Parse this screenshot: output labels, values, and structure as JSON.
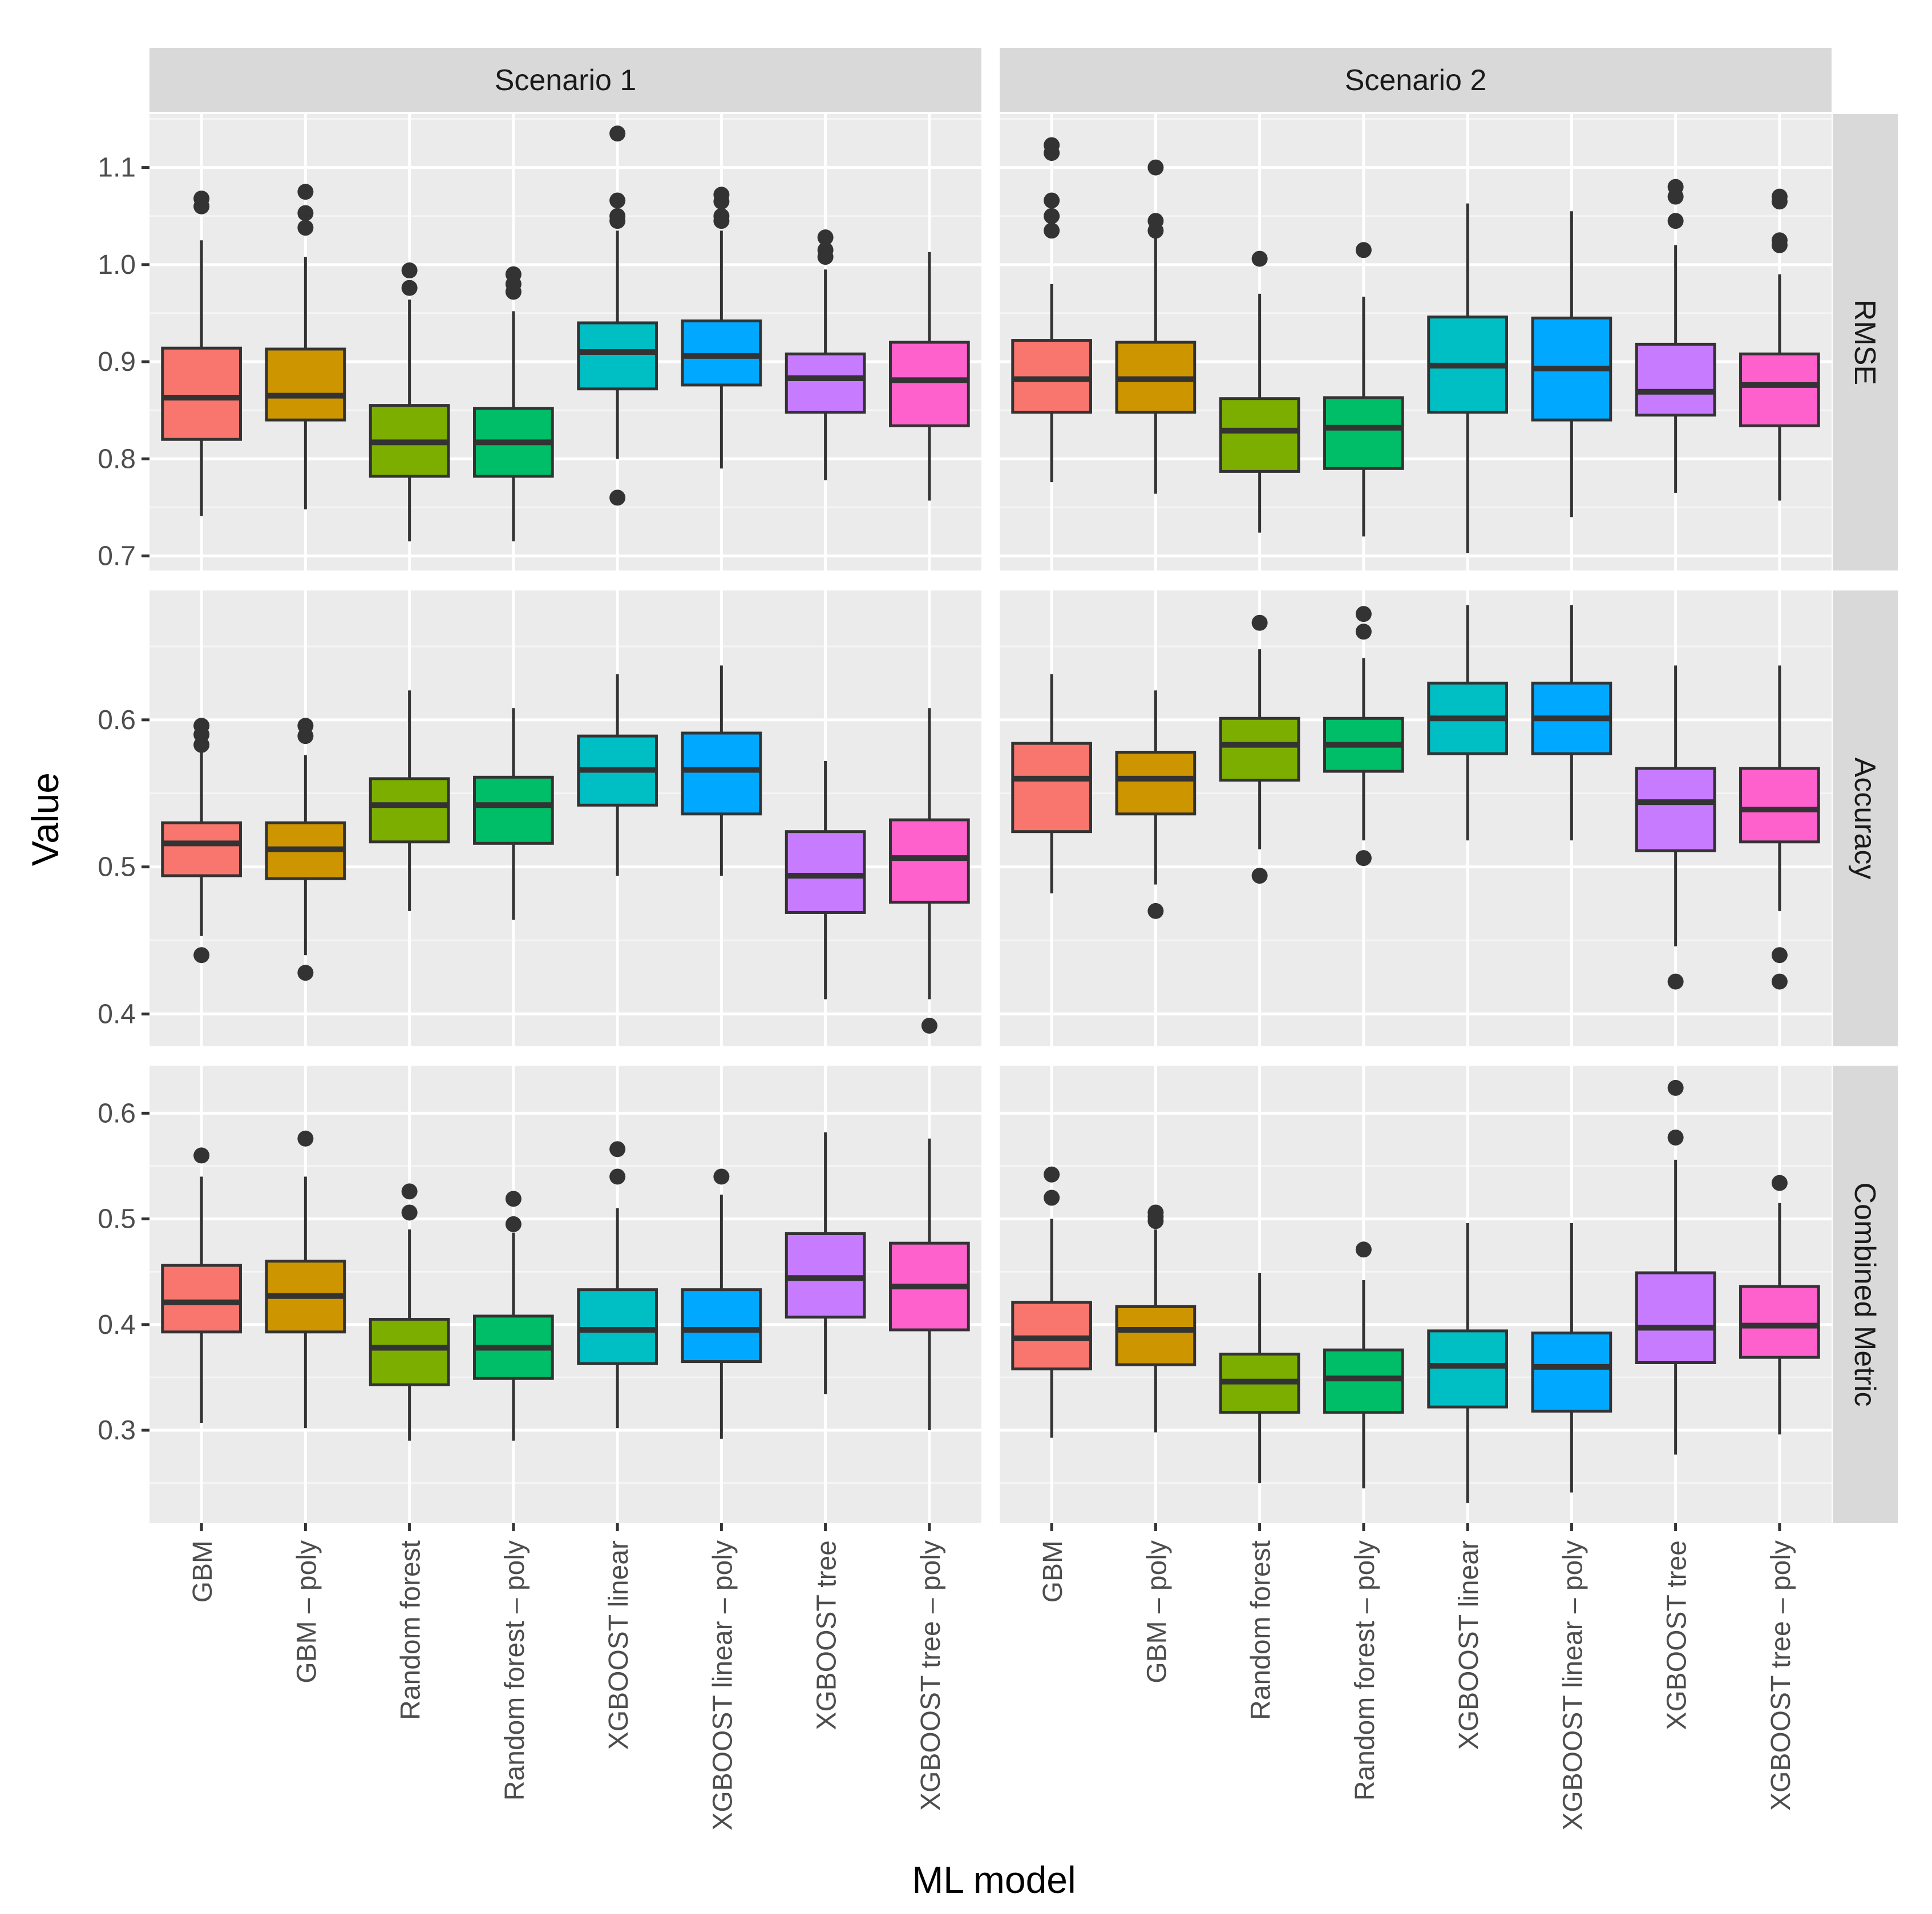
{
  "chart_data": {
    "type": "boxplot",
    "xlabel": "ML model",
    "ylabel": "Value",
    "columns": [
      "Scenario 1",
      "Scenario 2"
    ],
    "models": [
      "GBM",
      "GBM – poly",
      "Random forest",
      "Random forest – poly",
      "XGBOOST linear",
      "XGBOOST linear – poly",
      "XGBOOST tree",
      "XGBOOST tree – poly"
    ],
    "colors": [
      "#F8766D",
      "#CD9600",
      "#7CAE00",
      "#00BE67",
      "#00BFC4",
      "#00A9FF",
      "#C77CFF",
      "#FF61CC"
    ],
    "rows": [
      {
        "label": "RMSE",
        "ylim": [
          0.685,
          1.155
        ],
        "yticks": [
          0.7,
          0.8,
          0.9,
          1.0,
          1.1
        ],
        "yticklabels": [
          "0.7",
          "0.8",
          "0.9",
          "1.0",
          "1.1"
        ],
        "panels": [
          [
            {
              "low": 0.741,
              "q1": 0.82,
              "median": 0.863,
              "q3": 0.914,
              "high": 1.025,
              "outliers": [
                1.06,
                1.068
              ]
            },
            {
              "low": 0.748,
              "q1": 0.84,
              "median": 0.865,
              "q3": 0.913,
              "high": 1.008,
              "outliers": [
                1.038,
                1.053,
                1.075
              ]
            },
            {
              "low": 0.715,
              "q1": 0.782,
              "median": 0.817,
              "q3": 0.855,
              "high": 0.964,
              "outliers": [
                0.976,
                0.994
              ]
            },
            {
              "low": 0.715,
              "q1": 0.782,
              "median": 0.817,
              "q3": 0.852,
              "high": 0.952,
              "outliers": [
                0.972,
                0.98,
                0.99
              ]
            },
            {
              "low": 0.8,
              "q1": 0.872,
              "median": 0.91,
              "q3": 0.94,
              "high": 1.035,
              "outliers": [
                0.76,
                1.045,
                1.05,
                1.066,
                1.135
              ]
            },
            {
              "low": 0.79,
              "q1": 0.876,
              "median": 0.906,
              "q3": 0.942,
              "high": 1.035,
              "outliers": [
                1.045,
                1.05,
                1.065,
                1.072
              ]
            },
            {
              "low": 0.778,
              "q1": 0.848,
              "median": 0.883,
              "q3": 0.908,
              "high": 0.995,
              "outliers": [
                1.008,
                1.015,
                1.028
              ]
            },
            {
              "low": 0.757,
              "q1": 0.834,
              "median": 0.881,
              "q3": 0.92,
              "high": 1.013,
              "outliers": []
            }
          ],
          [
            {
              "low": 0.776,
              "q1": 0.848,
              "median": 0.882,
              "q3": 0.922,
              "high": 0.98,
              "outliers": [
                1.035,
                1.05,
                1.066,
                1.115,
                1.123
              ]
            },
            {
              "low": 0.764,
              "q1": 0.848,
              "median": 0.882,
              "q3": 0.92,
              "high": 1.03,
              "outliers": [
                1.035,
                1.045,
                1.1
              ]
            },
            {
              "low": 0.724,
              "q1": 0.787,
              "median": 0.829,
              "q3": 0.862,
              "high": 0.97,
              "outliers": [
                1.006
              ]
            },
            {
              "low": 0.72,
              "q1": 0.79,
              "median": 0.832,
              "q3": 0.863,
              "high": 0.967,
              "outliers": [
                1.015
              ]
            },
            {
              "low": 0.703,
              "q1": 0.848,
              "median": 0.896,
              "q3": 0.946,
              "high": 1.063,
              "outliers": []
            },
            {
              "low": 0.74,
              "q1": 0.84,
              "median": 0.893,
              "q3": 0.945,
              "high": 1.055,
              "outliers": []
            },
            {
              "low": 0.765,
              "q1": 0.845,
              "median": 0.869,
              "q3": 0.918,
              "high": 1.02,
              "outliers": [
                1.045,
                1.07,
                1.08
              ]
            },
            {
              "low": 0.757,
              "q1": 0.834,
              "median": 0.876,
              "q3": 0.908,
              "high": 0.99,
              "outliers": [
                1.02,
                1.025,
                1.065,
                1.07
              ]
            }
          ]
        ]
      },
      {
        "label": "Accuracy",
        "ylim": [
          0.378,
          0.688
        ],
        "yticks": [
          0.4,
          0.5,
          0.6
        ],
        "yticklabels": [
          "0.4",
          "0.5",
          "0.6"
        ],
        "panels": [
          [
            {
              "low": 0.453,
              "q1": 0.494,
              "median": 0.516,
              "q3": 0.53,
              "high": 0.578,
              "outliers": [
                0.44,
                0.583,
                0.59,
                0.596
              ]
            },
            {
              "low": 0.44,
              "q1": 0.492,
              "median": 0.512,
              "q3": 0.53,
              "high": 0.576,
              "outliers": [
                0.428,
                0.589,
                0.596
              ]
            },
            {
              "low": 0.47,
              "q1": 0.517,
              "median": 0.542,
              "q3": 0.56,
              "high": 0.62,
              "outliers": []
            },
            {
              "low": 0.464,
              "q1": 0.516,
              "median": 0.542,
              "q3": 0.561,
              "high": 0.608,
              "outliers": []
            },
            {
              "low": 0.494,
              "q1": 0.542,
              "median": 0.566,
              "q3": 0.589,
              "high": 0.631,
              "outliers": []
            },
            {
              "low": 0.494,
              "q1": 0.536,
              "median": 0.566,
              "q3": 0.591,
              "high": 0.637,
              "outliers": []
            },
            {
              "low": 0.41,
              "q1": 0.469,
              "median": 0.494,
              "q3": 0.524,
              "high": 0.572,
              "outliers": []
            },
            {
              "low": 0.41,
              "q1": 0.476,
              "median": 0.506,
              "q3": 0.532,
              "high": 0.608,
              "outliers": [
                0.392
              ]
            }
          ],
          [
            {
              "low": 0.482,
              "q1": 0.524,
              "median": 0.56,
              "q3": 0.584,
              "high": 0.631,
              "outliers": []
            },
            {
              "low": 0.488,
              "q1": 0.536,
              "median": 0.56,
              "q3": 0.578,
              "high": 0.62,
              "outliers": [
                0.47
              ]
            },
            {
              "low": 0.512,
              "q1": 0.559,
              "median": 0.583,
              "q3": 0.601,
              "high": 0.648,
              "outliers": [
                0.494,
                0.666
              ]
            },
            {
              "low": 0.518,
              "q1": 0.565,
              "median": 0.583,
              "q3": 0.601,
              "high": 0.642,
              "outliers": [
                0.506,
                0.66,
                0.672
              ]
            },
            {
              "low": 0.518,
              "q1": 0.577,
              "median": 0.601,
              "q3": 0.625,
              "high": 0.678,
              "outliers": []
            },
            {
              "low": 0.518,
              "q1": 0.577,
              "median": 0.601,
              "q3": 0.625,
              "high": 0.678,
              "outliers": []
            },
            {
              "low": 0.446,
              "q1": 0.511,
              "median": 0.544,
              "q3": 0.567,
              "high": 0.637,
              "outliers": [
                0.422
              ]
            },
            {
              "low": 0.47,
              "q1": 0.517,
              "median": 0.539,
              "q3": 0.567,
              "high": 0.637,
              "outliers": [
                0.422,
                0.44
              ]
            }
          ]
        ]
      },
      {
        "label": "Combined Metric",
        "ylim": [
          0.212,
          0.645
        ],
        "yticks": [
          0.3,
          0.4,
          0.5,
          0.6
        ],
        "yticklabels": [
          "0.3",
          "0.4",
          "0.5",
          "0.6"
        ],
        "panels": [
          [
            {
              "low": 0.307,
              "q1": 0.393,
              "median": 0.421,
              "q3": 0.456,
              "high": 0.54,
              "outliers": [
                0.56
              ]
            },
            {
              "low": 0.302,
              "q1": 0.393,
              "median": 0.427,
              "q3": 0.46,
              "high": 0.54,
              "outliers": [
                0.576
              ]
            },
            {
              "low": 0.29,
              "q1": 0.343,
              "median": 0.378,
              "q3": 0.405,
              "high": 0.49,
              "outliers": [
                0.506,
                0.526
              ]
            },
            {
              "low": 0.29,
              "q1": 0.349,
              "median": 0.378,
              "q3": 0.408,
              "high": 0.487,
              "outliers": [
                0.495,
                0.519
              ]
            },
            {
              "low": 0.302,
              "q1": 0.363,
              "median": 0.395,
              "q3": 0.433,
              "high": 0.51,
              "outliers": [
                0.54,
                0.566
              ]
            },
            {
              "low": 0.292,
              "q1": 0.365,
              "median": 0.395,
              "q3": 0.433,
              "high": 0.523,
              "outliers": [
                0.54
              ]
            },
            {
              "low": 0.334,
              "q1": 0.407,
              "median": 0.444,
              "q3": 0.486,
              "high": 0.582,
              "outliers": []
            },
            {
              "low": 0.3,
              "q1": 0.395,
              "median": 0.436,
              "q3": 0.477,
              "high": 0.576,
              "outliers": []
            }
          ],
          [
            {
              "low": 0.293,
              "q1": 0.358,
              "median": 0.387,
              "q3": 0.421,
              "high": 0.5,
              "outliers": [
                0.52,
                0.542
              ]
            },
            {
              "low": 0.298,
              "q1": 0.362,
              "median": 0.395,
              "q3": 0.417,
              "high": 0.49,
              "outliers": [
                0.498,
                0.502,
                0.506
              ]
            },
            {
              "low": 0.25,
              "q1": 0.317,
              "median": 0.346,
              "q3": 0.372,
              "high": 0.449,
              "outliers": []
            },
            {
              "low": 0.245,
              "q1": 0.317,
              "median": 0.349,
              "q3": 0.376,
              "high": 0.442,
              "outliers": [
                0.471
              ]
            },
            {
              "low": 0.231,
              "q1": 0.322,
              "median": 0.361,
              "q3": 0.394,
              "high": 0.496,
              "outliers": []
            },
            {
              "low": 0.241,
              "q1": 0.318,
              "median": 0.36,
              "q3": 0.392,
              "high": 0.496,
              "outliers": []
            },
            {
              "low": 0.277,
              "q1": 0.364,
              "median": 0.397,
              "q3": 0.449,
              "high": 0.556,
              "outliers": [
                0.577,
                0.624
              ]
            },
            {
              "low": 0.296,
              "q1": 0.369,
              "median": 0.399,
              "q3": 0.436,
              "high": 0.515,
              "outliers": [
                0.534
              ]
            }
          ]
        ]
      }
    ]
  }
}
